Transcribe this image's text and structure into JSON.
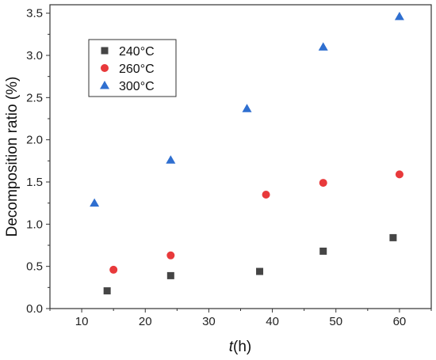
{
  "chart_data": {
    "type": "scatter",
    "xlabel": "t",
    "xlabel_unit": "(h)",
    "ylabel": "Decomposition ratio (%)",
    "xlim": [
      5,
      65
    ],
    "ylim": [
      0,
      3.6
    ],
    "xticks": [
      10,
      20,
      30,
      40,
      50,
      60
    ],
    "yticks": [
      0.0,
      0.5,
      1.0,
      1.5,
      2.0,
      2.5,
      3.0,
      3.5
    ],
    "xtick_labels": [
      "10",
      "20",
      "30",
      "40",
      "50",
      "60"
    ],
    "ytick_labels": [
      "0.0",
      "0.5",
      "1.0",
      "1.5",
      "2.0",
      "2.5",
      "3.0",
      "3.5"
    ],
    "grid": false,
    "legend_position": "top-left",
    "series": [
      {
        "name": "240°C",
        "marker": "square",
        "color": "#454545",
        "x": [
          14,
          24,
          38,
          48,
          59
        ],
        "y": [
          0.21,
          0.39,
          0.44,
          0.68,
          0.84
        ]
      },
      {
        "name": "260°C",
        "marker": "circle",
        "color": "#e8393b",
        "x": [
          15,
          24,
          39,
          48,
          60
        ],
        "y": [
          0.46,
          0.63,
          1.35,
          1.49,
          1.59
        ]
      },
      {
        "name": "300°C",
        "marker": "triangle",
        "color": "#2f6fd0",
        "x": [
          12,
          24,
          36,
          48,
          60
        ],
        "y": [
          1.25,
          1.76,
          2.37,
          3.1,
          3.46
        ]
      }
    ]
  }
}
